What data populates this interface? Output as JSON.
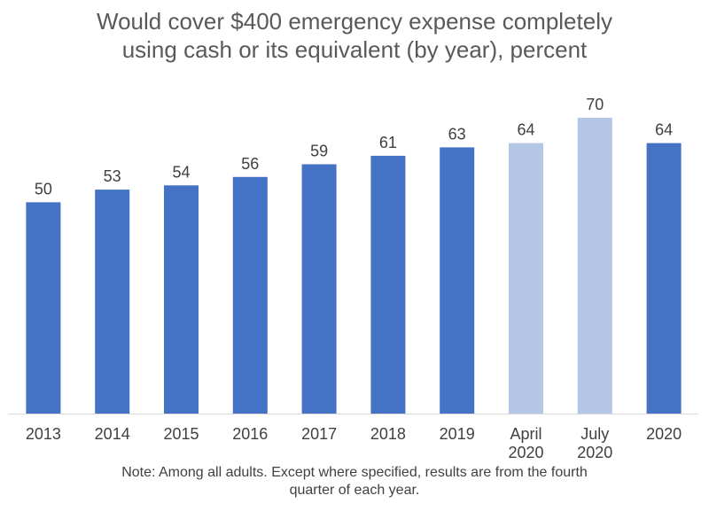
{
  "chart_data": {
    "type": "bar",
    "title_lines": [
      "Would cover $400 emergency expense completely",
      "using cash or its equivalent (by year), percent"
    ],
    "note_lines": [
      "Note: Among all adults. Except where specified, results are from the fourth",
      "quarter of each year."
    ],
    "categories": [
      [
        "2013"
      ],
      [
        "2014"
      ],
      [
        "2015"
      ],
      [
        "2016"
      ],
      [
        "2017"
      ],
      [
        "2018"
      ],
      [
        "2019"
      ],
      [
        "April",
        "2020"
      ],
      [
        "July",
        "2020"
      ],
      [
        "2020"
      ]
    ],
    "values": [
      50,
      53,
      54,
      56,
      59,
      61,
      63,
      64,
      70,
      64
    ],
    "value_labels": [
      "50",
      "53",
      "54",
      "56",
      "59",
      "61",
      "63",
      "64",
      "70",
      "64"
    ],
    "bar_colors": [
      "#4472C4",
      "#4472C4",
      "#4472C4",
      "#4472C4",
      "#4472C4",
      "#4472C4",
      "#4472C4",
      "#B4C7E7",
      "#B4C7E7",
      "#4472C4"
    ],
    "ylim": [
      0,
      70
    ],
    "grid": false,
    "legend": "none",
    "axis_color": "#D9D9D9"
  }
}
